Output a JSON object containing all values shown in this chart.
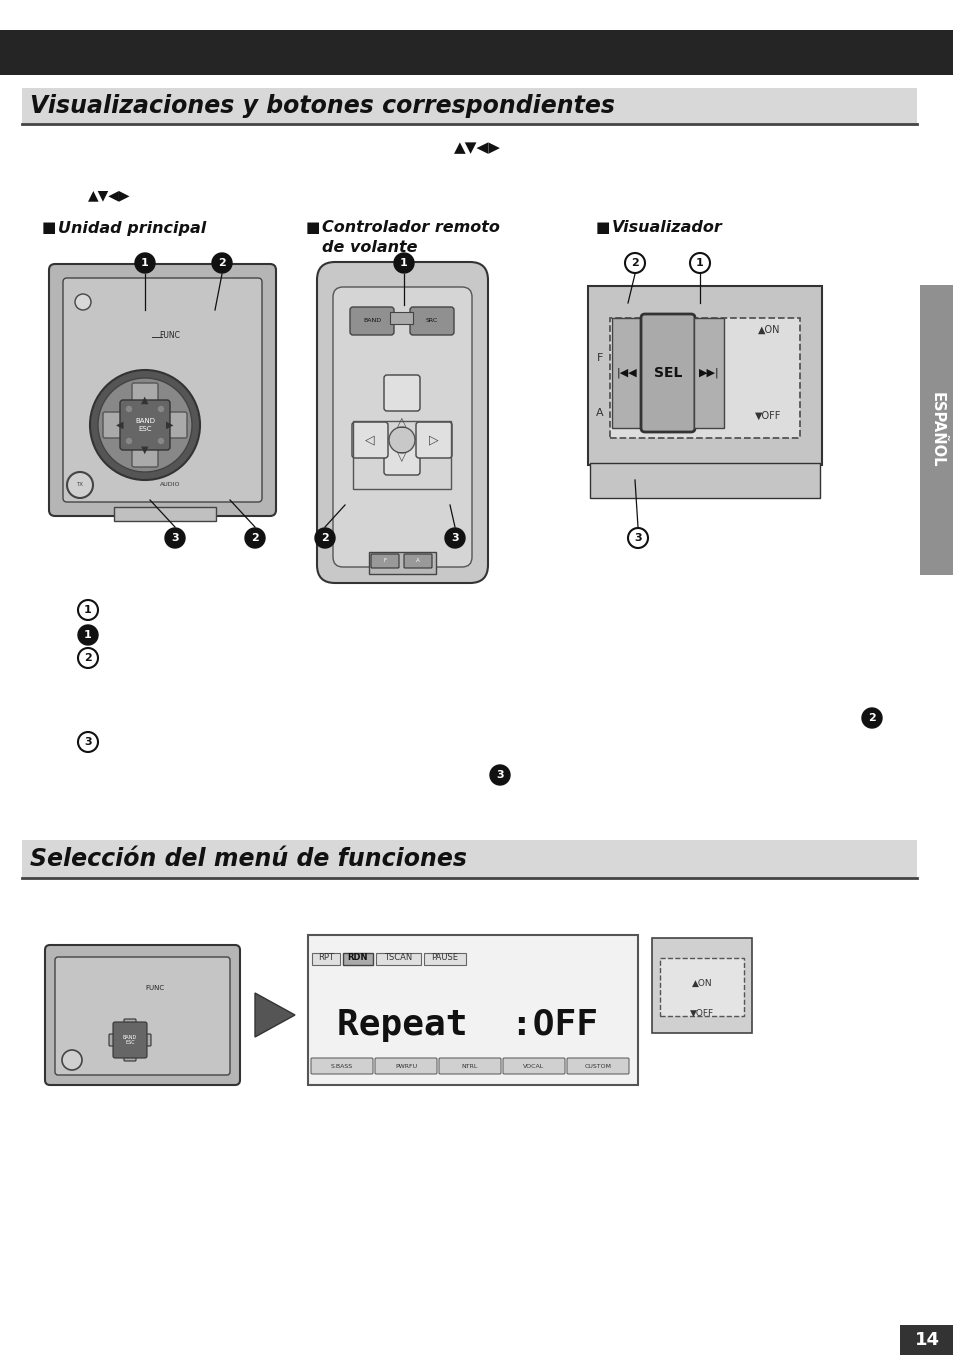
{
  "title1": "Visualizaciones y botones correspondientes",
  "title2": "Selección del menú de funciones",
  "header_bg": "#252525",
  "section_bg": "#d8d8d8",
  "sidebar_bg": "#909090",
  "sidebar_text": "ESPAÑOL",
  "page_num": "14",
  "label_unidad": "Unidad principal",
  "label_remoto_1": "Controlador remoto",
  "label_remoto_2": "de volante",
  "label_visual": "Visualizador",
  "arrow_symbols": "▲▼◀▶",
  "bg_color": "#ffffff",
  "page_bg": "#f5f5f5"
}
